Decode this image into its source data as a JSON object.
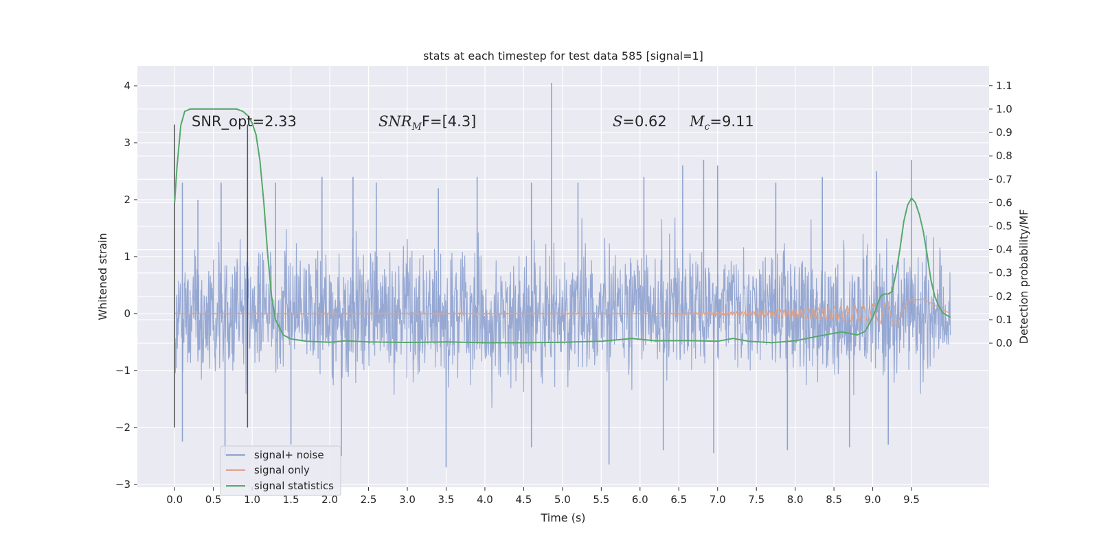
{
  "chart_data": {
    "type": "line",
    "title": "stats at each timestep for test data 585 [signal=1]",
    "xlabel": "Time (s)",
    "ylabel": "Whitened strain",
    "y2label": "Detection probability/MF",
    "xlim": [
      -0.48,
      10.5
    ],
    "ylim": [
      -3.05,
      4.35
    ],
    "y2lim": [
      -0.6155,
      1.1845
    ],
    "x_ticks": [
      "0.0",
      "0.5",
      "1.0",
      "1.5",
      "2.0",
      "2.5",
      "3.0",
      "3.5",
      "4.0",
      "4.5",
      "5.0",
      "5.5",
      "6.0",
      "6.5",
      "7.0",
      "7.5",
      "8.0",
      "8.5",
      "9.0",
      "9.5"
    ],
    "y_ticks": [
      "4",
      "3",
      "2",
      "1",
      "0",
      "−1",
      "−2",
      "−3"
    ],
    "y2_ticks": [
      "1.1",
      "1.0",
      "0.9",
      "0.8",
      "0.7",
      "0.6",
      "0.5",
      "0.4",
      "0.3",
      "0.2",
      "0.1",
      "0.0"
    ],
    "grid": true,
    "legend_position": "lower-left",
    "annotations": {
      "snr_opt": "SNR_opt=2.33",
      "snr_mf_main": "SNR",
      "snr_mf_sub": "M",
      "snr_mf_tail": "F=[4.3]",
      "s_var": "S",
      "s_val": "=0.62",
      "mc_var": "M",
      "mc_sub": "c",
      "mc_val": "=9.11"
    },
    "marker_lines_x": [
      0.0,
      0.94
    ],
    "series": [
      {
        "name": "signal+ noise",
        "color": "#8ea2cf",
        "description_of_shape": "dense noisy strain, roughly ±1.5 band with spikes to ~2.5, one spike to 4.0 at 4.86 s",
        "envelope": {
          "t_start": 0.0,
          "t_end": 10.0,
          "upper_typical": 1.7,
          "lower_typical": -1.7,
          "upper_peaks": [
            [
              0.1,
              2.3
            ],
            [
              0.3,
              2.0
            ],
            [
              0.6,
              2.3
            ],
            [
              1.3,
              2.3
            ],
            [
              1.9,
              2.4
            ],
            [
              2.3,
              2.4
            ],
            [
              2.6,
              2.3
            ],
            [
              3.4,
              2.2
            ],
            [
              3.9,
              2.4
            ],
            [
              4.6,
              2.3
            ],
            [
              4.86,
              4.05
            ],
            [
              5.2,
              2.3
            ],
            [
              6.05,
              2.4
            ],
            [
              6.55,
              2.6
            ],
            [
              6.82,
              2.7
            ],
            [
              7.0,
              2.6
            ],
            [
              7.75,
              2.3
            ],
            [
              8.35,
              2.4
            ],
            [
              9.05,
              2.5
            ],
            [
              9.5,
              2.7
            ]
          ],
          "lower_peaks": [
            [
              0.1,
              -2.25
            ],
            [
              0.65,
              -2.5
            ],
            [
              1.5,
              -2.3
            ],
            [
              2.15,
              -2.5
            ],
            [
              3.5,
              -2.7
            ],
            [
              4.6,
              -2.35
            ],
            [
              5.6,
              -2.65
            ],
            [
              6.3,
              -2.4
            ],
            [
              6.95,
              -2.45
            ],
            [
              7.9,
              -2.4
            ],
            [
              8.7,
              -2.35
            ],
            [
              9.2,
              -2.3
            ]
          ]
        }
      },
      {
        "name": "signal only",
        "color": "#e1a184",
        "description_of_shape": "near zero, chirp growing after ~6 s, max amplitude ~0.25 near 9.6 s",
        "chirp": {
          "t_start": 0.0,
          "t_end": 9.65,
          "amp_final": 0.25,
          "grow_from": 6.0
        }
      },
      {
        "name": "signal statistics",
        "color": "#55a868",
        "axis": "right",
        "x": [
          0.0,
          0.03,
          0.08,
          0.13,
          0.2,
          0.3,
          0.4,
          0.5,
          0.6,
          0.7,
          0.8,
          0.88,
          0.95,
          1.0,
          1.05,
          1.1,
          1.15,
          1.2,
          1.25,
          1.3,
          1.4,
          1.5,
          1.7,
          2.0,
          2.2,
          2.5,
          3.0,
          3.5,
          4.0,
          4.5,
          5.0,
          5.5,
          5.9,
          6.2,
          6.6,
          7.0,
          7.2,
          7.4,
          7.7,
          8.0,
          8.3,
          8.6,
          8.8,
          8.9,
          9.0,
          9.1,
          9.15,
          9.2,
          9.25,
          9.3,
          9.35,
          9.4,
          9.45,
          9.5,
          9.55,
          9.6,
          9.65,
          9.7,
          9.75,
          9.8,
          9.85,
          9.9,
          9.95,
          10.0
        ],
        "values": [
          0.6,
          0.75,
          0.93,
          0.99,
          1.0,
          1.0,
          1.0,
          1.0,
          1.0,
          1.0,
          1.0,
          0.99,
          0.97,
          0.94,
          0.89,
          0.78,
          0.6,
          0.38,
          0.2,
          0.1,
          0.035,
          0.018,
          0.008,
          0.004,
          0.01,
          0.005,
          0.003,
          0.005,
          0.002,
          0.002,
          0.004,
          0.008,
          0.02,
          0.01,
          0.011,
          0.008,
          0.02,
          0.008,
          0.002,
          0.01,
          0.03,
          0.048,
          0.035,
          0.05,
          0.11,
          0.2,
          0.21,
          0.21,
          0.22,
          0.3,
          0.4,
          0.52,
          0.59,
          0.62,
          0.6,
          0.55,
          0.48,
          0.38,
          0.27,
          0.2,
          0.16,
          0.13,
          0.12,
          0.11
        ]
      }
    ]
  }
}
